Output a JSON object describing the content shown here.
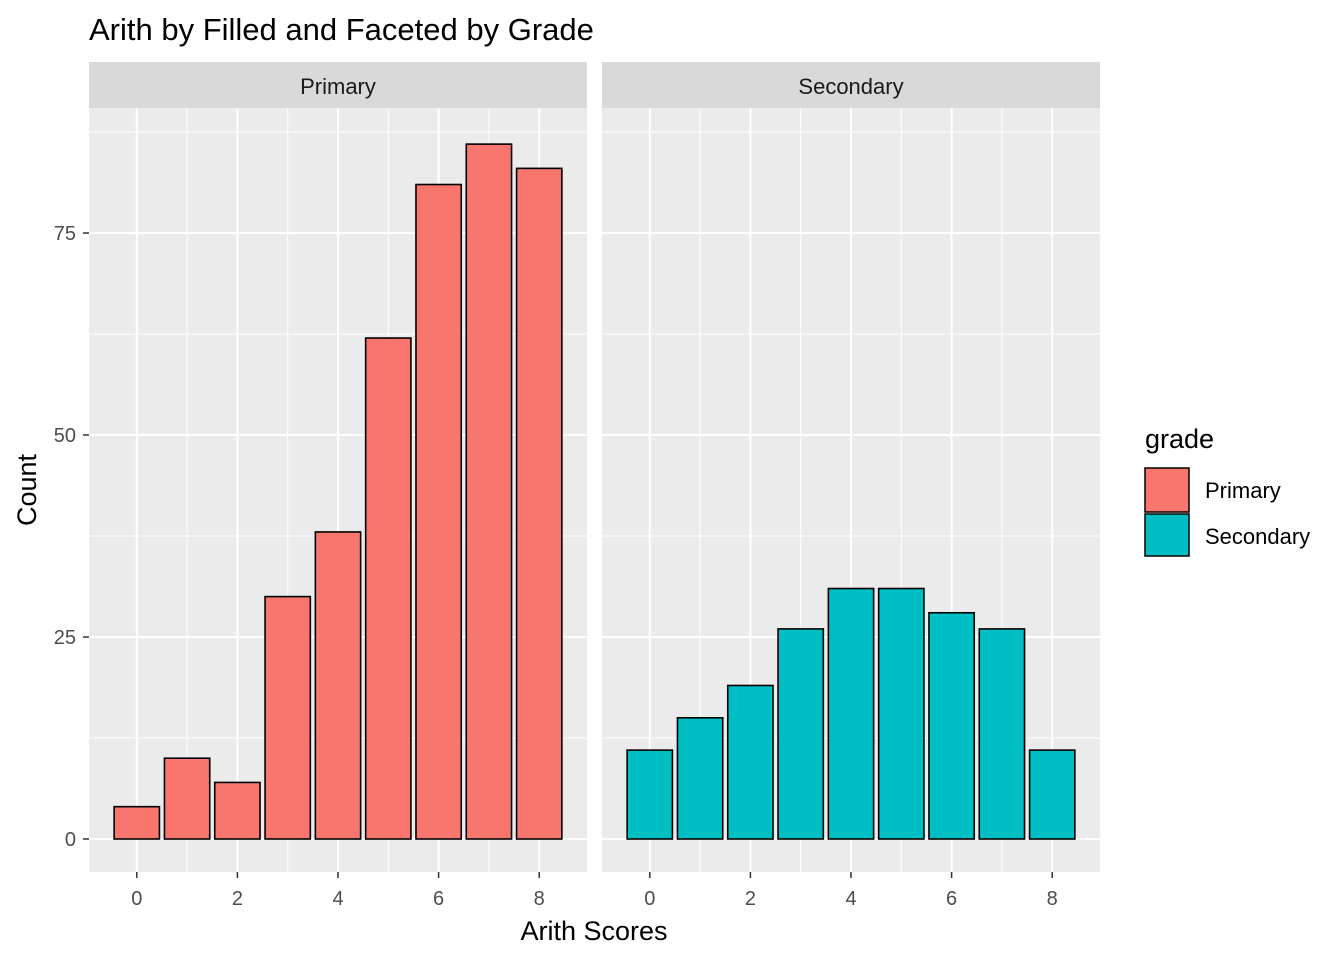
{
  "chart_data": {
    "type": "bar",
    "title": "Arith by Filled and Faceted by Grade",
    "xlabel": "Arith Scores",
    "ylabel": "Count",
    "x_ticks": [
      "0",
      "2",
      "4",
      "6",
      "8"
    ],
    "y_ticks": [
      "0",
      "25",
      "50",
      "75"
    ],
    "xlim": [
      -0.5,
      8.5
    ],
    "ylim": [
      0,
      90
    ],
    "grid": true,
    "legend": {
      "title": "grade",
      "position": "right",
      "entries": [
        {
          "label": "Primary",
          "color": "#F8766D"
        },
        {
          "label": "Secondary",
          "color": "#00BFC4"
        }
      ]
    },
    "facets": [
      {
        "strip_label": "Primary",
        "color": "#F8766D",
        "x": [
          0,
          1,
          2,
          3,
          4,
          5,
          6,
          7,
          8
        ],
        "values": [
          4,
          10,
          7,
          30,
          38,
          62,
          81,
          86,
          83
        ]
      },
      {
        "strip_label": "Secondary",
        "color": "#00BFC4",
        "x": [
          0,
          1,
          2,
          3,
          4,
          5,
          6,
          7,
          8
        ],
        "values": [
          11,
          15,
          19,
          26,
          31,
          31,
          28,
          26,
          11
        ]
      }
    ]
  }
}
